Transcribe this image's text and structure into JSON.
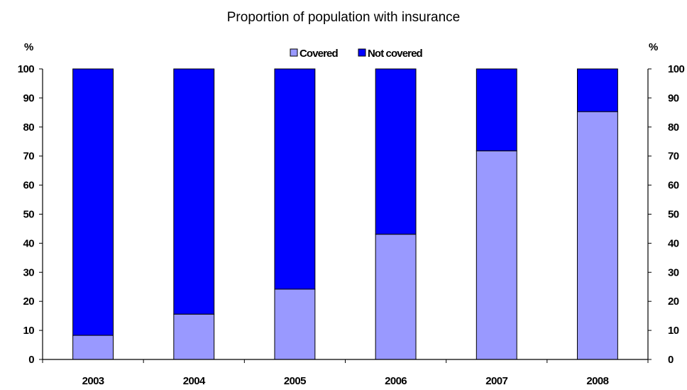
{
  "chart_data": {
    "type": "bar",
    "stacked": true,
    "title": "Proportion of population with insurance",
    "y_unit_left": "%",
    "y_unit_right": "%",
    "categories": [
      "2003",
      "2004",
      "2005",
      "2006",
      "2007",
      "2008"
    ],
    "series": [
      {
        "name": "Covered",
        "color": "#9999ff",
        "values": [
          8.3,
          15.6,
          24.2,
          43.1,
          71.8,
          85.3
        ]
      },
      {
        "name": "Not covered",
        "color": "#0000ff",
        "values": [
          91.7,
          84.4,
          75.8,
          56.9,
          28.2,
          14.7
        ]
      }
    ],
    "ylim": [
      0,
      100
    ],
    "yticks": [
      0,
      10,
      20,
      30,
      40,
      50,
      60,
      70,
      80,
      90,
      100
    ],
    "dual_y_axis": true,
    "grid": false,
    "legend_position": "top-center"
  }
}
